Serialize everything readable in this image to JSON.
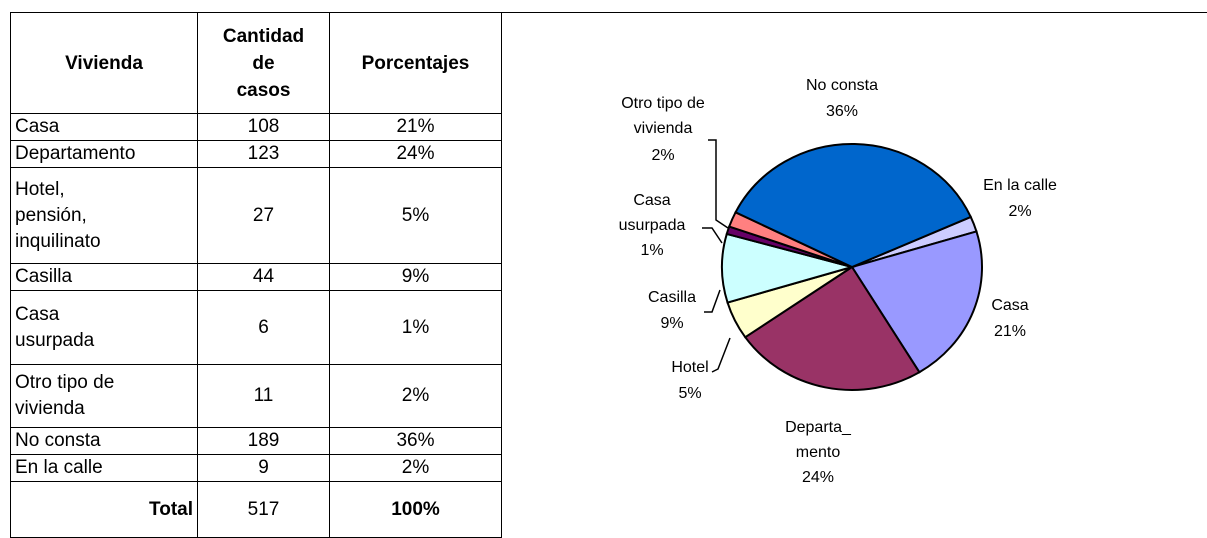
{
  "table": {
    "header": [
      "Vivienda",
      "Cantidad\nde\ncasos",
      "Porcentajes"
    ],
    "rows": [
      [
        "Casa",
        "108",
        "21%"
      ],
      [
        "Departamento",
        "123",
        "24%"
      ],
      [
        "Hotel,\npensión,\ninquilinato",
        "27",
        "5%"
      ],
      [
        "Casilla",
        "44",
        "9%"
      ],
      [
        "Casa\nusurpada",
        "6",
        "1%"
      ],
      [
        "Otro tipo de\nvivienda",
        "11",
        "2%"
      ],
      [
        "No consta",
        "189",
        "36%"
      ],
      [
        "En la calle",
        "9",
        "2%"
      ],
      [
        "Total",
        "517",
        "100%"
      ]
    ]
  },
  "chart_data": {
    "type": "pie",
    "categories": [
      "En la calle",
      "Casa",
      "Departa_\nmento",
      "Hotel",
      "Casilla",
      "Casa\nusurpada",
      "Otro tipo de\nvivienda",
      "No consta"
    ],
    "values": [
      2,
      21,
      24,
      5,
      9,
      1,
      2,
      36
    ],
    "value_labels": [
      "2%",
      "21%",
      "24%",
      "5%",
      "9%",
      "1%",
      "2%",
      "36%"
    ],
    "colors": [
      "#ccccff",
      "#9999ff",
      "#993366",
      "#ffffcc",
      "#ccffff",
      "#660066",
      "#ff8080",
      "#0066cc"
    ]
  }
}
